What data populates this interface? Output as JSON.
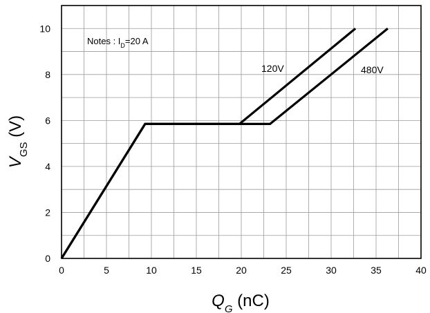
{
  "chart_data": {
    "type": "line",
    "title": "",
    "xlabel": {
      "main": "Q",
      "sub": "G",
      "unit": " (nC)"
    },
    "ylabel": {
      "main": "V",
      "sub": "GS",
      "unit": " (V)"
    },
    "xlim": [
      0,
      40
    ],
    "ylim": [
      0,
      11
    ],
    "x_ticks": [
      0,
      5,
      10,
      15,
      20,
      25,
      30,
      35,
      40
    ],
    "y_ticks": [
      0,
      2,
      4,
      6,
      8,
      10
    ],
    "x_minor_step": 2.5,
    "y_minor_step": 1,
    "grid": true,
    "annotation": {
      "prefix": "Notes : I",
      "sub": "D",
      "suffix": "=20 A"
    },
    "series": [
      {
        "name": "120V",
        "x": [
          0,
          9.3,
          19.8,
          32.7
        ],
        "y": [
          0,
          5.85,
          5.85,
          10
        ]
      },
      {
        "name": "480V",
        "x": [
          0,
          9.3,
          23.2,
          36.3
        ],
        "y": [
          0,
          5.85,
          5.85,
          10
        ]
      }
    ],
    "line_color": "#000000"
  }
}
